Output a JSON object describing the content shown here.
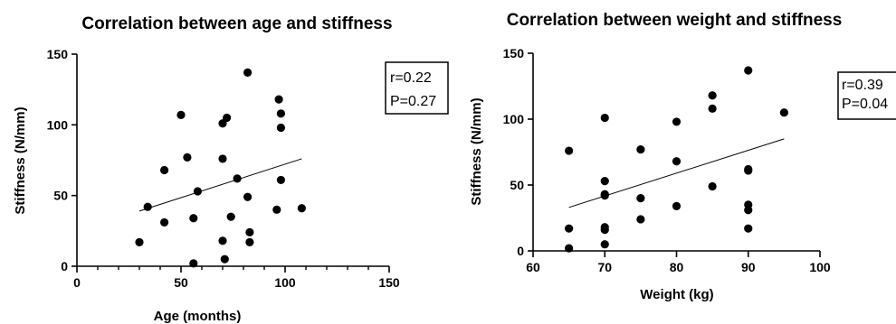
{
  "chart_data": [
    {
      "type": "scatter",
      "title": "Correlation between age and stiffness",
      "xlabel": "Age (months)",
      "ylabel": "Stiffness (N/mm)",
      "xlim": [
        0,
        150
      ],
      "ylim": [
        0,
        150
      ],
      "x_ticks": [
        0,
        50,
        100,
        150
      ],
      "y_ticks": [
        0,
        50,
        100,
        150
      ],
      "x_minor_step": 10,
      "grid": false,
      "stats": {
        "r": "r=0.22",
        "p": "P=0.27"
      },
      "points": [
        {
          "x": 30,
          "y": 17
        },
        {
          "x": 34,
          "y": 42
        },
        {
          "x": 42,
          "y": 68
        },
        {
          "x": 42,
          "y": 31
        },
        {
          "x": 50,
          "y": 107
        },
        {
          "x": 53,
          "y": 77
        },
        {
          "x": 56,
          "y": 34
        },
        {
          "x": 56,
          "y": 2
        },
        {
          "x": 58,
          "y": 53
        },
        {
          "x": 70,
          "y": 101
        },
        {
          "x": 70,
          "y": 76
        },
        {
          "x": 70,
          "y": 18
        },
        {
          "x": 71,
          "y": 5
        },
        {
          "x": 72,
          "y": 105
        },
        {
          "x": 74,
          "y": 35
        },
        {
          "x": 77,
          "y": 62
        },
        {
          "x": 82,
          "y": 137
        },
        {
          "x": 82,
          "y": 49
        },
        {
          "x": 83,
          "y": 24
        },
        {
          "x": 83,
          "y": 17
        },
        {
          "x": 96,
          "y": 40
        },
        {
          "x": 97,
          "y": 118
        },
        {
          "x": 98,
          "y": 108
        },
        {
          "x": 98,
          "y": 98
        },
        {
          "x": 98,
          "y": 61
        },
        {
          "x": 108,
          "y": 41
        }
      ],
      "fit_line": {
        "x": [
          30,
          108
        ],
        "y": [
          39,
          76
        ]
      }
    },
    {
      "type": "scatter",
      "title": "Correlation between weight and stiffness",
      "xlabel": "Weight (kg)",
      "ylabel": "Stiffness (N/mm)",
      "xlim": [
        60,
        100
      ],
      "ylim": [
        0,
        150
      ],
      "x_ticks": [
        60,
        70,
        80,
        90,
        100
      ],
      "y_ticks": [
        0,
        50,
        100,
        150
      ],
      "grid": false,
      "stats": {
        "r": "r=0.39",
        "p": "P=0.04"
      },
      "points": [
        {
          "x": 65,
          "y": 76
        },
        {
          "x": 65,
          "y": 17
        },
        {
          "x": 65,
          "y": 2
        },
        {
          "x": 70,
          "y": 101
        },
        {
          "x": 70,
          "y": 53
        },
        {
          "x": 70,
          "y": 43
        },
        {
          "x": 70,
          "y": 42
        },
        {
          "x": 70,
          "y": 18
        },
        {
          "x": 70,
          "y": 16
        },
        {
          "x": 70,
          "y": 5
        },
        {
          "x": 75,
          "y": 77
        },
        {
          "x": 75,
          "y": 40
        },
        {
          "x": 75,
          "y": 24
        },
        {
          "x": 80,
          "y": 98
        },
        {
          "x": 80,
          "y": 68
        },
        {
          "x": 80,
          "y": 34
        },
        {
          "x": 85,
          "y": 118
        },
        {
          "x": 85,
          "y": 108
        },
        {
          "x": 85,
          "y": 49
        },
        {
          "x": 90,
          "y": 137
        },
        {
          "x": 90,
          "y": 62
        },
        {
          "x": 90,
          "y": 61
        },
        {
          "x": 90,
          "y": 35
        },
        {
          "x": 90,
          "y": 31
        },
        {
          "x": 90,
          "y": 17
        },
        {
          "x": 95,
          "y": 105
        }
      ],
      "fit_line": {
        "x": [
          65,
          95
        ],
        "y": [
          33,
          85
        ]
      }
    }
  ]
}
